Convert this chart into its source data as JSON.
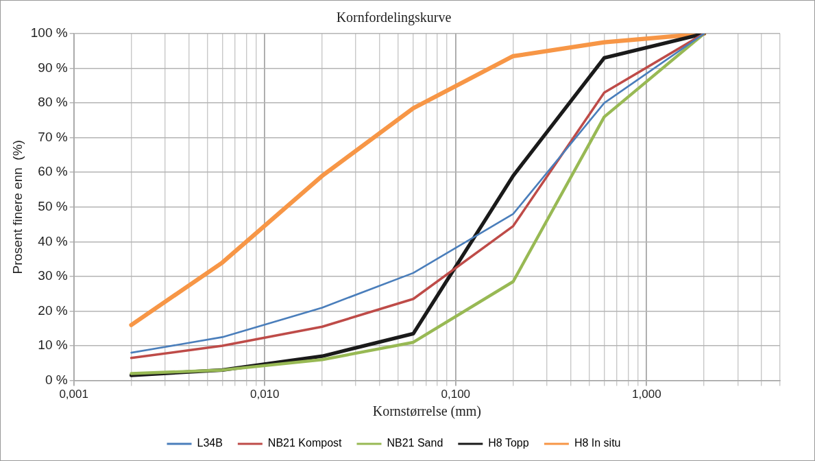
{
  "chart_data": {
    "type": "line",
    "title": "Kornfordelingskurve",
    "xlabel": "Kornstørrelse (mm)",
    "ylabel": "Prosent finere enn  (%)",
    "log": "x",
    "grid": true,
    "legend": "bottom",
    "marker": "none",
    "line_style": "solid",
    "x": [
      0.002,
      0.006,
      0.02,
      0.06,
      0.2,
      0.6,
      2
    ],
    "xlim": [
      0.001,
      5
    ],
    "xticks": [
      {
        "value": 0.001,
        "label": "0,001"
      },
      {
        "value": 0.002,
        "label": null
      },
      {
        "value": 0.003,
        "label": null
      },
      {
        "value": 0.004,
        "label": null
      },
      {
        "value": 0.005,
        "label": null
      },
      {
        "value": 0.006,
        "label": null
      },
      {
        "value": 0.007,
        "label": null
      },
      {
        "value": 0.008,
        "label": null
      },
      {
        "value": 0.009,
        "label": null
      },
      {
        "value": 0.01,
        "label": "0,010"
      },
      {
        "value": 0.02,
        "label": null
      },
      {
        "value": 0.03,
        "label": null
      },
      {
        "value": 0.04,
        "label": null
      },
      {
        "value": 0.05,
        "label": null
      },
      {
        "value": 0.06,
        "label": null
      },
      {
        "value": 0.07,
        "label": null
      },
      {
        "value": 0.08,
        "label": null
      },
      {
        "value": 0.09,
        "label": null
      },
      {
        "value": 0.1,
        "label": "0,100"
      },
      {
        "value": 0.2,
        "label": null
      },
      {
        "value": 0.3,
        "label": null
      },
      {
        "value": 0.4,
        "label": null
      },
      {
        "value": 0.5,
        "label": null
      },
      {
        "value": 0.6,
        "label": null
      },
      {
        "value": 0.7,
        "label": null
      },
      {
        "value": 0.8,
        "label": null
      },
      {
        "value": 0.9,
        "label": null
      },
      {
        "value": 1,
        "label": "1,000"
      },
      {
        "value": 2,
        "label": null
      },
      {
        "value": 3,
        "label": null
      },
      {
        "value": 4,
        "label": null
      },
      {
        "value": 5,
        "label": null
      }
    ],
    "ylim": [
      0,
      100
    ],
    "yticks": [
      {
        "value": 0,
        "label": "0 %"
      },
      {
        "value": 10,
        "label": "10 %"
      },
      {
        "value": 20,
        "label": "20 %"
      },
      {
        "value": 30,
        "label": "30 %"
      },
      {
        "value": 40,
        "label": "40 %"
      },
      {
        "value": 50,
        "label": "50 %"
      },
      {
        "value": 60,
        "label": "60 %"
      },
      {
        "value": 70,
        "label": "70 %"
      },
      {
        "value": 80,
        "label": "80 %"
      },
      {
        "value": 90,
        "label": "90 %"
      },
      {
        "value": 100,
        "label": "100 %"
      }
    ],
    "series": [
      {
        "name": "L34B",
        "color": "#4a7ebb",
        "values": [
          8,
          12.5,
          21,
          31,
          48,
          80,
          100
        ]
      },
      {
        "name": "NB21 Kompost",
        "color": "#be4b48",
        "values": [
          6.5,
          10,
          15.5,
          23.5,
          44.5,
          83,
          100
        ]
      },
      {
        "name": "NB21 Sand",
        "color": "#98b954",
        "values": [
          2,
          3,
          6,
          11,
          28.5,
          76,
          100
        ]
      },
      {
        "name": "H8 Topp",
        "color": "#1a1a1a",
        "values": [
          1.5,
          3,
          7,
          13.5,
          59,
          93,
          100
        ]
      },
      {
        "name": "H8 In situ",
        "color": "#f79646",
        "values": [
          16,
          34,
          59,
          78.5,
          93.5,
          97.5,
          100
        ]
      }
    ]
  }
}
